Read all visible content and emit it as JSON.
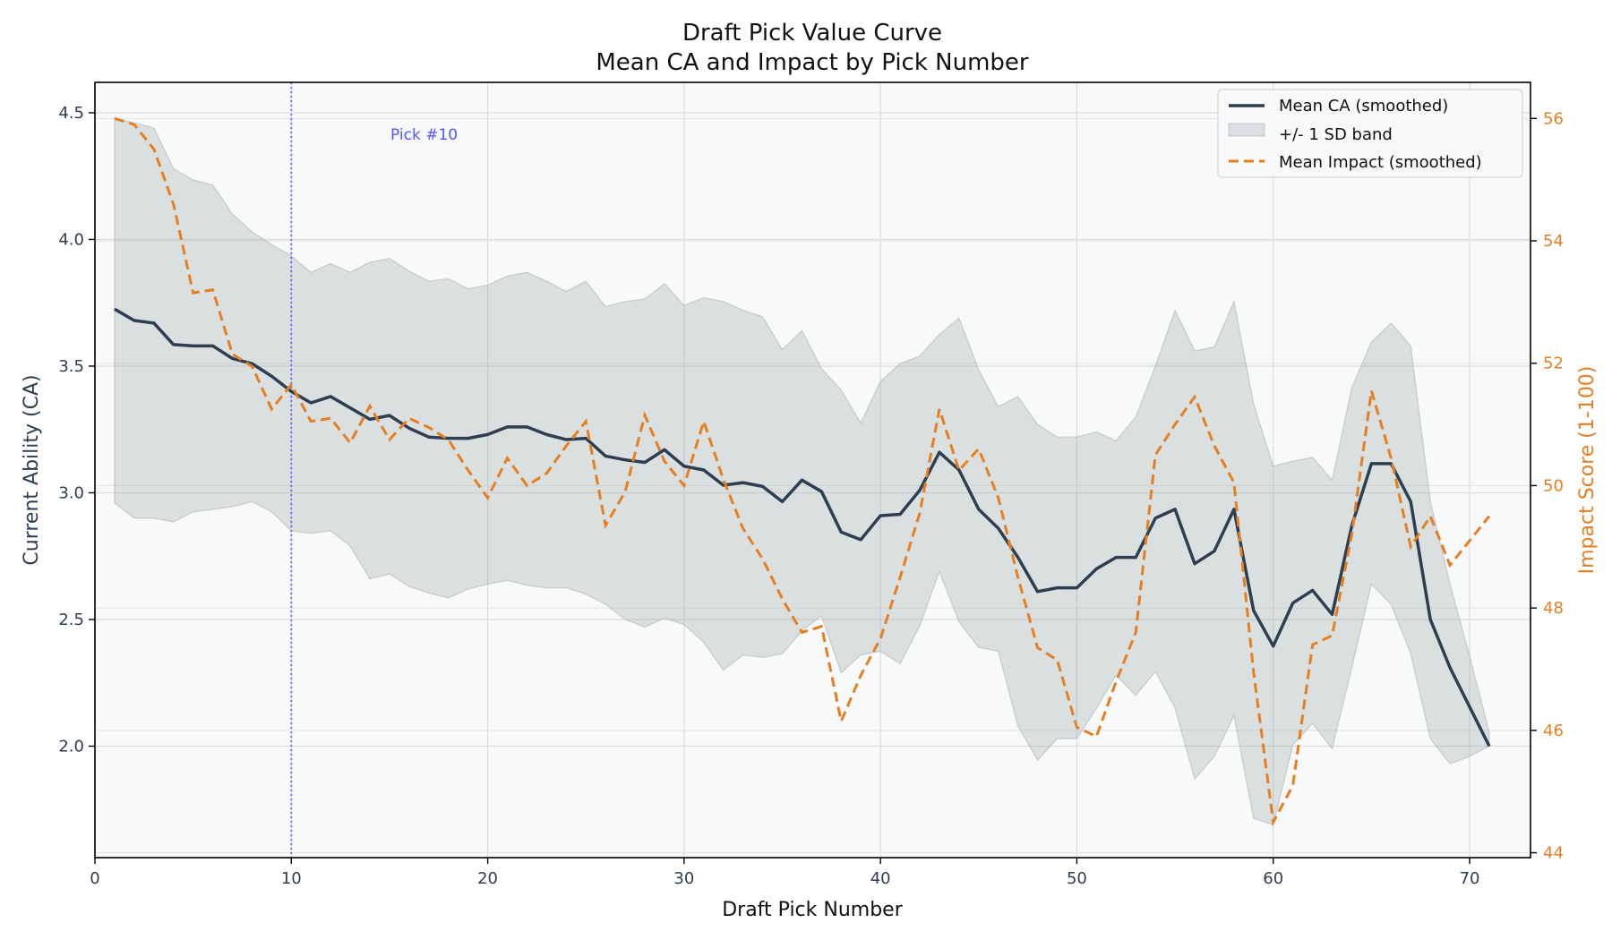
{
  "chart_data": {
    "type": "line",
    "title": "Draft Pick Value Curve",
    "subtitle": "Mean CA and Impact by Pick Number",
    "xlabel": "Draft Pick Number",
    "ylabel": "Current Ability (CA)",
    "y2label": "Impact Score (1-100)",
    "xlim": [
      0,
      73.1
    ],
    "ylim": [
      1.56,
      4.62
    ],
    "y2lim": [
      43.92,
      56.59
    ],
    "xticks": [
      0,
      10,
      20,
      30,
      40,
      50,
      60,
      70
    ],
    "yticks": [
      "2.0",
      "2.5",
      "3.0",
      "3.5",
      "4.0",
      "4.5"
    ],
    "y2ticks": [
      "44",
      "46",
      "48",
      "50",
      "52",
      "54",
      "56"
    ],
    "grid": true,
    "legend_position": "top-right",
    "x": [
      1,
      2,
      3,
      4,
      5,
      6,
      7,
      8,
      9,
      10,
      11,
      12,
      13,
      14,
      15,
      16,
      17,
      18,
      19,
      20,
      21,
      22,
      23,
      24,
      25,
      26,
      27,
      28,
      29,
      30,
      31,
      32,
      33,
      34,
      35,
      36,
      37,
      38,
      39,
      40,
      41,
      42,
      43,
      44,
      45,
      46,
      47,
      48,
      49,
      50,
      51,
      52,
      53,
      54,
      55,
      56,
      57,
      58,
      59,
      60,
      61,
      62,
      63,
      64,
      65,
      66,
      67,
      68,
      69,
      70,
      71
    ],
    "series": [
      {
        "name": "Mean CA (smoothed)",
        "axis": "left",
        "color": "#2c3e50",
        "style": "solid",
        "values": [
          3.725,
          3.68,
          3.67,
          3.585,
          3.58,
          3.58,
          3.53,
          3.51,
          3.46,
          3.4,
          3.355,
          3.38,
          3.335,
          3.29,
          3.305,
          3.255,
          3.22,
          3.215,
          3.215,
          3.23,
          3.26,
          3.26,
          3.23,
          3.21,
          3.215,
          3.145,
          3.13,
          3.12,
          3.17,
          3.105,
          3.09,
          3.03,
          3.04,
          3.025,
          2.965,
          3.05,
          3.005,
          2.845,
          2.815,
          2.91,
          2.915,
          3.01,
          3.16,
          3.09,
          2.935,
          2.86,
          2.745,
          2.61,
          2.625,
          2.625,
          2.7,
          2.745,
          2.745,
          2.9,
          2.935,
          2.72,
          2.77,
          2.935,
          2.535,
          2.395,
          2.565,
          2.615,
          2.52,
          2.87,
          3.115,
          3.115,
          2.965,
          2.5,
          2.31,
          2.155,
          2.0
        ]
      },
      {
        "name": "+/- 1 SD band",
        "axis": "left",
        "color": "#95a5a6",
        "style": "band",
        "upper": [
          4.48,
          4.46,
          4.44,
          4.28,
          4.235,
          4.215,
          4.1,
          4.03,
          3.98,
          3.935,
          3.87,
          3.905,
          3.87,
          3.91,
          3.925,
          3.875,
          3.835,
          3.845,
          3.805,
          3.82,
          3.855,
          3.87,
          3.835,
          3.795,
          3.835,
          3.735,
          3.755,
          3.765,
          3.825,
          3.74,
          3.77,
          3.755,
          3.72,
          3.695,
          3.565,
          3.64,
          3.49,
          3.405,
          3.275,
          3.44,
          3.51,
          3.54,
          3.625,
          3.69,
          3.485,
          3.34,
          3.38,
          3.27,
          3.22,
          3.22,
          3.24,
          3.205,
          3.3,
          3.5,
          3.72,
          3.56,
          3.575,
          3.755,
          3.35,
          3.105,
          3.125,
          3.14,
          3.05,
          3.415,
          3.595,
          3.67,
          3.58,
          2.965,
          2.64,
          2.355,
          2.055
        ],
        "lower": [
          2.96,
          2.9,
          2.9,
          2.885,
          2.925,
          2.935,
          2.945,
          2.965,
          2.925,
          2.85,
          2.84,
          2.85,
          2.79,
          2.66,
          2.68,
          2.63,
          2.605,
          2.585,
          2.62,
          2.64,
          2.655,
          2.635,
          2.625,
          2.625,
          2.6,
          2.56,
          2.5,
          2.47,
          2.505,
          2.48,
          2.41,
          2.3,
          2.36,
          2.35,
          2.365,
          2.455,
          2.515,
          2.29,
          2.36,
          2.375,
          2.325,
          2.475,
          2.69,
          2.49,
          2.39,
          2.375,
          2.08,
          1.945,
          2.03,
          2.03,
          2.15,
          2.28,
          2.2,
          2.295,
          2.15,
          1.87,
          1.96,
          2.12,
          1.715,
          1.69,
          2.005,
          2.09,
          1.99,
          2.31,
          2.64,
          2.56,
          2.365,
          2.03,
          1.93,
          1.96,
          2.0
        ]
      },
      {
        "name": "Mean Impact (smoothed)",
        "axis": "right",
        "color": "#e67e22",
        "style": "dashed",
        "values": [
          56.0,
          55.9,
          55.5,
          54.6,
          53.15,
          53.2,
          52.15,
          51.95,
          51.25,
          51.65,
          51.05,
          51.1,
          50.7,
          51.3,
          50.75,
          51.1,
          50.95,
          50.75,
          50.25,
          49.8,
          50.45,
          50.0,
          50.2,
          50.65,
          51.05,
          49.35,
          49.9,
          51.15,
          50.4,
          50.0,
          51.05,
          50.1,
          49.3,
          48.8,
          48.15,
          47.6,
          47.7,
          46.15,
          46.9,
          47.5,
          48.5,
          49.55,
          51.25,
          50.25,
          50.6,
          49.8,
          48.5,
          47.35,
          47.15,
          46.05,
          45.9,
          46.8,
          47.6,
          50.5,
          51.0,
          51.45,
          50.65,
          50.05,
          46.95,
          44.5,
          45.1,
          47.4,
          47.55,
          49.2,
          51.55,
          50.45,
          49.0,
          49.5,
          48.7,
          49.1,
          49.5
        ]
      }
    ],
    "annotations": [
      {
        "text": "Pick #10",
        "x": 10,
        "style": "vertical dotted line",
        "color": "#5555ff"
      }
    ],
    "colors": {
      "background": "#f8f9fa",
      "ca": "#2c3e50",
      "impact": "#e67e22",
      "band": "#95a5a6",
      "marker": "#5555ff"
    }
  }
}
